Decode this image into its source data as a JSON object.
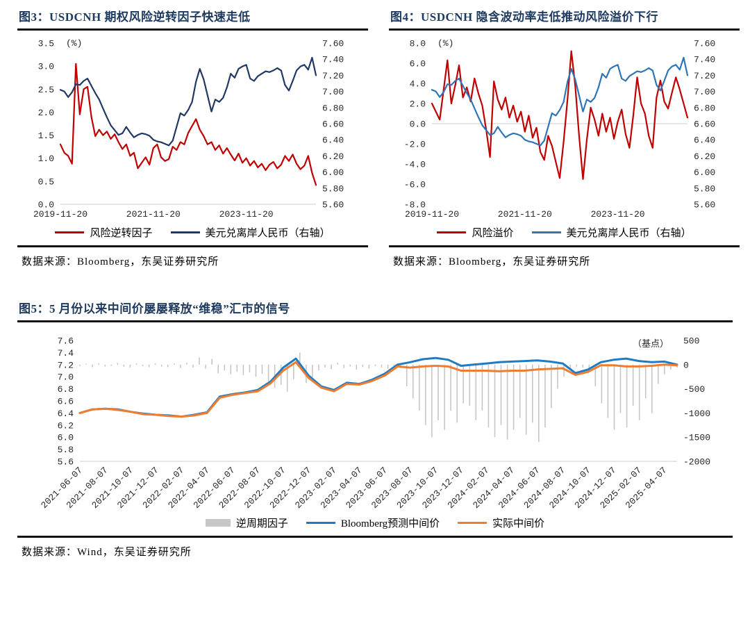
{
  "sources": {
    "fig3": "数据来源：Bloomberg，东吴证券研究所",
    "fig4": "数据来源：Bloomberg，东吴证券研究所",
    "fig5": "数据来源：Wind，东吴证券研究所"
  },
  "colors": {
    "title_navy": "#1E3A5F",
    "rule_black": "#111111",
    "grid_gray": "#D6D6D6"
  },
  "chart_data": [
    {
      "id": "fig3",
      "type": "line",
      "title": "图3：USDCNH 期权风险逆转因子快速走低",
      "left_axis": {
        "min": 0,
        "max": 3.5,
        "unit": "(%)",
        "ticks": [
          "3.5",
          "3.0",
          "2.5",
          "2.0",
          "1.5",
          "1.0",
          "0.5",
          "0.0"
        ]
      },
      "right_axis": {
        "min": 5.6,
        "max": 7.6,
        "ticks": [
          "7.60",
          "7.40",
          "7.20",
          "7.00",
          "6.80",
          "6.60",
          "6.40",
          "6.20",
          "6.00",
          "5.80",
          "5.60"
        ]
      },
      "x_ticks": [
        {
          "label": "2019-11-20",
          "f": 0
        },
        {
          "label": "2021-11-20",
          "f": 0.3636
        },
        {
          "label": "2023-11-20",
          "f": 0.7273
        }
      ],
      "gridlines": [
        {
          "axis": "left",
          "v": 0
        }
      ],
      "legend_position": "bottom",
      "series": [
        {
          "name": "风险逆转因子",
          "color": "#C00000",
          "axis": "left",
          "type": "line",
          "values": [
            1.3,
            1.12,
            1.05,
            0.88,
            3.05,
            1.95,
            2.5,
            2.55,
            1.9,
            1.48,
            1.62,
            1.5,
            1.58,
            1.42,
            1.52,
            1.35,
            1.2,
            1.3,
            1.05,
            1.12,
            0.78,
            0.9,
            1.02,
            0.86,
            1.22,
            1.3,
            1.02,
            0.94,
            0.98,
            1.25,
            1.18,
            1.35,
            1.3,
            1.55,
            1.7,
            1.85,
            1.62,
            1.48,
            1.3,
            1.35,
            1.18,
            1.28,
            1.1,
            1.22,
            1.08,
            0.95,
            1.1,
            0.9,
            1.0,
            0.84,
            0.94,
            0.8,
            0.88,
            0.74,
            0.86,
            0.92,
            0.78,
            0.86,
            1.05,
            0.94,
            1.08,
            0.88,
            0.76,
            0.84,
            1.05,
            0.68,
            0.42
          ]
        },
        {
          "name": "美元兑离岸人民币（右轴）",
          "color": "#1F3864",
          "axis": "right",
          "type": "line",
          "values": [
            7.02,
            7.0,
            6.93,
            6.99,
            7.09,
            7.08,
            7.13,
            7.16,
            7.07,
            6.98,
            6.9,
            6.79,
            6.68,
            6.58,
            6.52,
            6.46,
            6.48,
            6.56,
            6.49,
            6.43,
            6.46,
            6.48,
            6.47,
            6.45,
            6.4,
            6.38,
            6.37,
            6.35,
            6.33,
            6.39,
            6.56,
            6.73,
            6.7,
            6.77,
            6.87,
            7.12,
            7.28,
            7.15,
            6.95,
            6.75,
            6.9,
            6.87,
            6.92,
            7.05,
            7.22,
            7.17,
            7.28,
            7.31,
            7.33,
            7.16,
            7.13,
            7.19,
            7.22,
            7.25,
            7.24,
            7.26,
            7.29,
            7.26,
            7.08,
            7.01,
            7.13,
            7.26,
            7.31,
            7.33,
            7.27,
            7.42,
            7.2
          ]
        }
      ]
    },
    {
      "id": "fig4",
      "type": "line",
      "title": "图4：USDCNH 隐含波动率走低推动风险溢价下行",
      "left_axis": {
        "min": -8,
        "max": 8,
        "unit": "(%)",
        "ticks": [
          "8.0",
          "6.0",
          "4.0",
          "2.0",
          "0.0",
          "-2.0",
          "-4.0",
          "-6.0",
          "-8.0"
        ]
      },
      "right_axis": {
        "min": 5.6,
        "max": 7.6,
        "ticks": [
          "7.60",
          "7.40",
          "7.20",
          "7.00",
          "6.80",
          "6.60",
          "6.40",
          "6.20",
          "6.00",
          "5.80",
          "5.60"
        ]
      },
      "x_ticks": [
        {
          "label": "2019-11-20",
          "f": 0
        },
        {
          "label": "2021-11-20",
          "f": 0.3636
        },
        {
          "label": "2023-11-20",
          "f": 0.7273
        }
      ],
      "gridlines": [
        {
          "axis": "left",
          "v": 0
        }
      ],
      "legend_position": "bottom",
      "series": [
        {
          "name": "风险溢价",
          "color": "#C00000",
          "axis": "left",
          "type": "line",
          "values": [
            2.0,
            1.2,
            0.4,
            3.3,
            6.3,
            2.0,
            3.8,
            5.8,
            2.6,
            3.6,
            2.2,
            4.5,
            3.0,
            1.8,
            -0.6,
            -3.3,
            4.2,
            2.4,
            1.4,
            2.6,
            0.6,
            1.8,
            0.2,
            1.2,
            -0.8,
            0.8,
            -1.4,
            -0.4,
            -2.8,
            -3.6,
            -1.2,
            -2.2,
            -3.8,
            -5.4,
            -1.8,
            2.4,
            7.2,
            3.8,
            -1.2,
            -5.5,
            -1.6,
            1.6,
            0.4,
            -1.2,
            1.0,
            -0.8,
            0.6,
            -1.5,
            0.2,
            1.4,
            -1.0,
            -2.4,
            0.8,
            4.6,
            2.0,
            1.0,
            -1.2,
            -2.4,
            2.6,
            4.3,
            2.2,
            1.5,
            3.1,
            4.6,
            3.4,
            2.0,
            0.6
          ]
        },
        {
          "name": "美元兑离岸人民币（右轴）",
          "color": "#2E75B6",
          "axis": "right",
          "type": "line",
          "values": [
            7.02,
            7.0,
            6.93,
            6.99,
            7.09,
            7.08,
            7.13,
            7.16,
            7.07,
            6.98,
            6.9,
            6.79,
            6.68,
            6.58,
            6.52,
            6.46,
            6.48,
            6.56,
            6.49,
            6.43,
            6.46,
            6.48,
            6.47,
            6.45,
            6.4,
            6.38,
            6.37,
            6.35,
            6.33,
            6.39,
            6.56,
            6.73,
            6.7,
            6.77,
            6.87,
            7.12,
            7.28,
            7.15,
            6.95,
            6.75,
            6.9,
            6.87,
            6.92,
            7.05,
            7.22,
            7.17,
            7.28,
            7.31,
            7.33,
            7.16,
            7.13,
            7.19,
            7.22,
            7.25,
            7.24,
            7.26,
            7.29,
            7.26,
            7.08,
            7.01,
            7.13,
            7.26,
            7.31,
            7.33,
            7.27,
            7.42,
            7.2
          ]
        }
      ]
    },
    {
      "id": "fig5",
      "type": "bar+line",
      "title": "图5：5 月份以来中间价屡屡释放“维稳”汇市的信号",
      "left_axis": {
        "min": 5.6,
        "max": 7.6,
        "ticks": [
          "7.6",
          "7.4",
          "7.2",
          "7.0",
          "6.8",
          "6.6",
          "6.4",
          "6.2",
          "6.0",
          "5.8",
          "5.6"
        ]
      },
      "right_axis": {
        "min": -2000,
        "max": 500,
        "unit": "（基点）",
        "ticks": [
          "500",
          "0",
          "-500",
          "-1000",
          "-1500",
          "-2000"
        ]
      },
      "x_ticks": [
        {
          "label": "2021-06-07",
          "f": 0.0
        },
        {
          "label": "2021-08-07",
          "f": 0.0426
        },
        {
          "label": "2021-10-07",
          "f": 0.0851
        },
        {
          "label": "2021-12-07",
          "f": 0.1277
        },
        {
          "label": "2022-02-07",
          "f": 0.1702
        },
        {
          "label": "2022-04-07",
          "f": 0.2128
        },
        {
          "label": "2022-06-07",
          "f": 0.2553
        },
        {
          "label": "2022-08-07",
          "f": 0.2979
        },
        {
          "label": "2022-10-07",
          "f": 0.3404
        },
        {
          "label": "2022-12-07",
          "f": 0.383
        },
        {
          "label": "2023-02-07",
          "f": 0.4255
        },
        {
          "label": "2023-04-07",
          "f": 0.4681
        },
        {
          "label": "2023-06-07",
          "f": 0.5106
        },
        {
          "label": "2023-08-07",
          "f": 0.5532
        },
        {
          "label": "2023-10-07",
          "f": 0.5957
        },
        {
          "label": "2023-12-07",
          "f": 0.6383
        },
        {
          "label": "2024-02-07",
          "f": 0.6809
        },
        {
          "label": "2024-04-07",
          "f": 0.7234
        },
        {
          "label": "2024-06-07",
          "f": 0.766
        },
        {
          "label": "2024-08-07",
          "f": 0.8085
        },
        {
          "label": "2024-10-07",
          "f": 0.8511
        },
        {
          "label": "2024-12-07",
          "f": 0.8936
        },
        {
          "label": "2025-02-07",
          "f": 0.9362
        },
        {
          "label": "2025-04-07",
          "f": 0.9787
        }
      ],
      "gridlines": [
        {
          "axis": "left",
          "v": 5.6
        }
      ],
      "legend_position": "bottom",
      "series": [
        {
          "name": "逆周期因子",
          "color": "#C7C7C7",
          "axis": "right",
          "type": "bar",
          "values": [
            -30,
            20,
            -50,
            30,
            -40,
            -25,
            35,
            -45,
            -60,
            25,
            -35,
            -55,
            30,
            -40,
            -50,
            25,
            -70,
            40,
            -60,
            150,
            -80,
            120,
            -180,
            -120,
            -200,
            -150,
            -220,
            -160,
            -250,
            -190,
            -350,
            -480,
            -420,
            -560,
            -300,
            250,
            -380,
            -260,
            -120,
            -60,
            -90,
            40,
            -70,
            -40,
            -100,
            -50,
            -80,
            -30,
            -60,
            -90,
            -40,
            -70,
            -450,
            -700,
            -950,
            -1250,
            -1500,
            -1150,
            -1350,
            -950,
            -1200,
            -800,
            -850,
            -1150,
            -950,
            -1300,
            -1500,
            -1250,
            -1550,
            -1350,
            -1100,
            -1450,
            -1200,
            -1600,
            -1300,
            -900,
            -500,
            -250,
            -100,
            -40,
            -60,
            -150,
            -450,
            -800,
            -1100,
            -1350,
            -1000,
            -1300,
            -850,
            -1150,
            -700,
            -1000,
            -400,
            -200,
            -100,
            -60
          ]
        },
        {
          "name": "Bloomberg预测中间价",
          "color": "#1F7CC4",
          "axis": "left",
          "type": "line",
          "values": [
            6.4,
            6.46,
            6.47,
            6.46,
            6.42,
            6.39,
            6.37,
            6.36,
            6.34,
            6.37,
            6.41,
            6.67,
            6.71,
            6.74,
            6.78,
            6.92,
            7.15,
            7.3,
            7.02,
            6.84,
            6.78,
            6.9,
            6.88,
            6.95,
            7.05,
            7.2,
            7.24,
            7.29,
            7.31,
            7.28,
            7.18,
            7.2,
            7.22,
            7.24,
            7.25,
            7.26,
            7.27,
            7.25,
            7.22,
            7.06,
            7.12,
            7.24,
            7.28,
            7.3,
            7.26,
            7.24,
            7.25,
            7.2
          ]
        },
        {
          "name": "实际中间价",
          "color": "#ED7D31",
          "axis": "left",
          "type": "line",
          "values": [
            6.4,
            6.46,
            6.47,
            6.45,
            6.42,
            6.38,
            6.37,
            6.35,
            6.34,
            6.36,
            6.4,
            6.65,
            6.7,
            6.73,
            6.76,
            6.89,
            7.1,
            7.24,
            6.98,
            6.82,
            6.76,
            6.88,
            6.87,
            6.93,
            7.02,
            7.17,
            7.15,
            7.17,
            7.18,
            7.17,
            7.1,
            7.1,
            7.1,
            7.09,
            7.1,
            7.1,
            7.12,
            7.13,
            7.14,
            7.03,
            7.08,
            7.19,
            7.19,
            7.17,
            7.17,
            7.18,
            7.2,
            7.19
          ]
        }
      ]
    }
  ]
}
